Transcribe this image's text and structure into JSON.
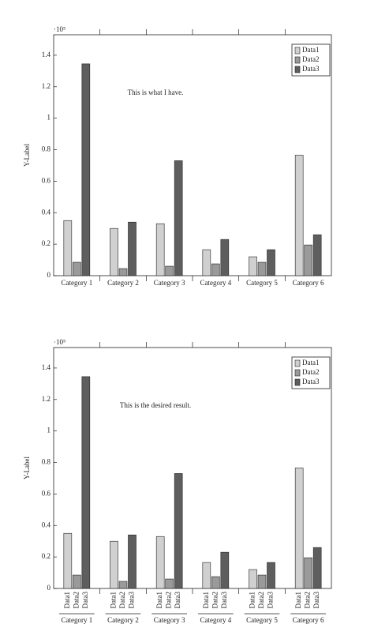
{
  "chart_data": [
    {
      "type": "bar",
      "annotation": "This is what I have.",
      "y_label": "Y-Label",
      "y_scale_label": "·10⁵",
      "categories": [
        "Category 1",
        "Category 2",
        "Category 3",
        "Category 4",
        "Category 5",
        "Category 6"
      ],
      "series": [
        {
          "name": "Data1",
          "color": "#d0d0d0",
          "values": [
            0.35,
            0.3,
            0.33,
            0.165,
            0.12,
            0.765
          ]
        },
        {
          "name": "Data2",
          "color": "#9a9a9a",
          "values": [
            0.085,
            0.045,
            0.06,
            0.075,
            0.085,
            0.195
          ]
        },
        {
          "name": "Data3",
          "color": "#5e5e5e",
          "values": [
            1.345,
            0.34,
            0.73,
            0.23,
            0.165,
            0.26
          ]
        }
      ],
      "ylim": [
        0,
        1.53
      ],
      "yticks": [
        0,
        0.2,
        0.4,
        0.6,
        0.8,
        1,
        1.2,
        1.4
      ],
      "legend": "top-right",
      "bar_name_labels": false
    },
    {
      "type": "bar",
      "annotation": "This is the desired result.",
      "y_label": "Y-Label",
      "y_scale_label": "·10⁵",
      "categories": [
        "Category 1",
        "Category 2",
        "Category 3",
        "Category 4",
        "Category 5",
        "Category 6"
      ],
      "series": [
        {
          "name": "Data1",
          "color": "#d0d0d0",
          "values": [
            0.35,
            0.3,
            0.33,
            0.165,
            0.12,
            0.765
          ]
        },
        {
          "name": "Data2",
          "color": "#9a9a9a",
          "values": [
            0.085,
            0.045,
            0.06,
            0.075,
            0.085,
            0.195
          ]
        },
        {
          "name": "Data3",
          "color": "#5e5e5e",
          "values": [
            1.345,
            0.34,
            0.73,
            0.23,
            0.165,
            0.26
          ]
        }
      ],
      "ylim": [
        0,
        1.53
      ],
      "yticks": [
        0,
        0.2,
        0.4,
        0.6,
        0.8,
        1,
        1.2,
        1.4
      ],
      "legend": "top-right",
      "bar_name_labels": true
    }
  ]
}
